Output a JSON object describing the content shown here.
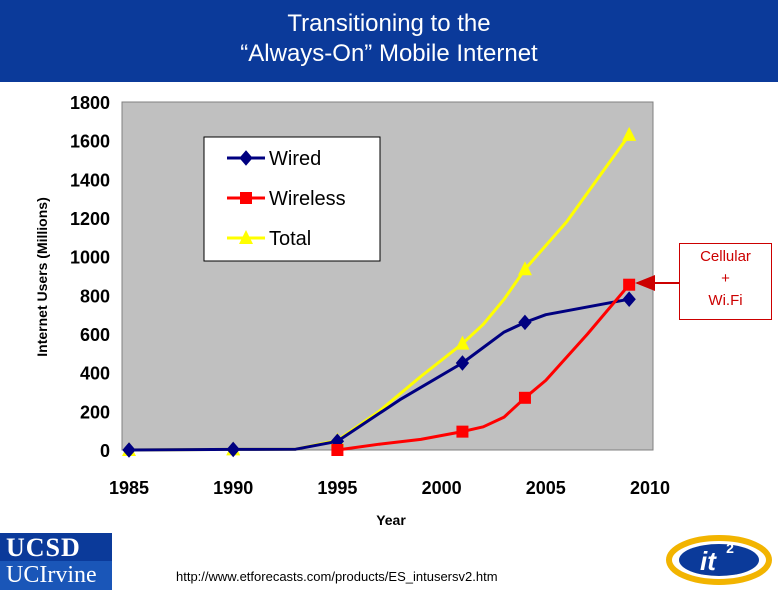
{
  "slide": {
    "title_line1": "Transitioning to the",
    "title_line2": "“Always-On” Mobile Internet",
    "callout_line1": "Cellular",
    "callout_line2": "+",
    "callout_line3": "Wi.Fi",
    "source": "http://www.etforecasts.com/products/ES_intusersv2.htm",
    "logo_top": "UCSD",
    "logo_bottom": "UCIrvine",
    "logo_badge": "it",
    "logo_badge_sup": "2"
  },
  "colors": {
    "title_bg": "#0b3a9a",
    "plot_bg": "#c0c0c0",
    "wired": "#000080",
    "wireless": "#ff0000",
    "total": "#ffff00",
    "callout": "#cc0000"
  },
  "chart_data": {
    "type": "line",
    "title": "",
    "xlabel": "Year",
    "ylabel": "Internet Users (Millions)",
    "xlim": [
      1985,
      2010
    ],
    "ylim": [
      0,
      1800
    ],
    "xticks": [
      1985,
      1990,
      1995,
      2000,
      2005,
      2010
    ],
    "yticks": [
      0,
      200,
      400,
      600,
      800,
      1000,
      1200,
      1400,
      1600,
      1800
    ],
    "grid": false,
    "legend_position": "top-left",
    "series": [
      {
        "name": "Wired",
        "marker": "diamond",
        "color": "#000080",
        "line": [
          [
            1985,
            0
          ],
          [
            1990,
            3
          ],
          [
            1993,
            4
          ],
          [
            1995,
            45
          ],
          [
            1998,
            260
          ],
          [
            2001,
            450
          ],
          [
            2002,
            530
          ],
          [
            2003,
            610
          ],
          [
            2004,
            660
          ],
          [
            2005,
            700
          ],
          [
            2009,
            780
          ]
        ],
        "points": [
          [
            1985,
            0
          ],
          [
            1990,
            3
          ],
          [
            1995,
            45
          ],
          [
            2001,
            450
          ],
          [
            2004,
            660
          ],
          [
            2009,
            780
          ]
        ]
      },
      {
        "name": "Wireless",
        "marker": "square",
        "color": "#ff0000",
        "line": [
          [
            1995,
            0
          ],
          [
            1997,
            30
          ],
          [
            1999,
            55
          ],
          [
            2001,
            95
          ],
          [
            2002,
            120
          ],
          [
            2003,
            170
          ],
          [
            2004,
            270
          ],
          [
            2005,
            360
          ],
          [
            2007,
            600
          ],
          [
            2009,
            855
          ]
        ],
        "points": [
          [
            1995,
            0
          ],
          [
            2001,
            95
          ],
          [
            2004,
            270
          ],
          [
            2009,
            855
          ]
        ]
      },
      {
        "name": "Total",
        "marker": "triangle",
        "color": "#ffff00",
        "line": [
          [
            1985,
            0
          ],
          [
            1990,
            3
          ],
          [
            1993,
            4
          ],
          [
            1995,
            50
          ],
          [
            1997,
            200
          ],
          [
            1999,
            380
          ],
          [
            2001,
            550
          ],
          [
            2002,
            650
          ],
          [
            2003,
            780
          ],
          [
            2004,
            935
          ],
          [
            2006,
            1180
          ],
          [
            2009,
            1630
          ]
        ],
        "points": [
          [
            1985,
            0
          ],
          [
            1990,
            3
          ],
          [
            1995,
            50
          ],
          [
            2001,
            550
          ],
          [
            2004,
            935
          ],
          [
            2009,
            1630
          ]
        ]
      }
    ]
  }
}
